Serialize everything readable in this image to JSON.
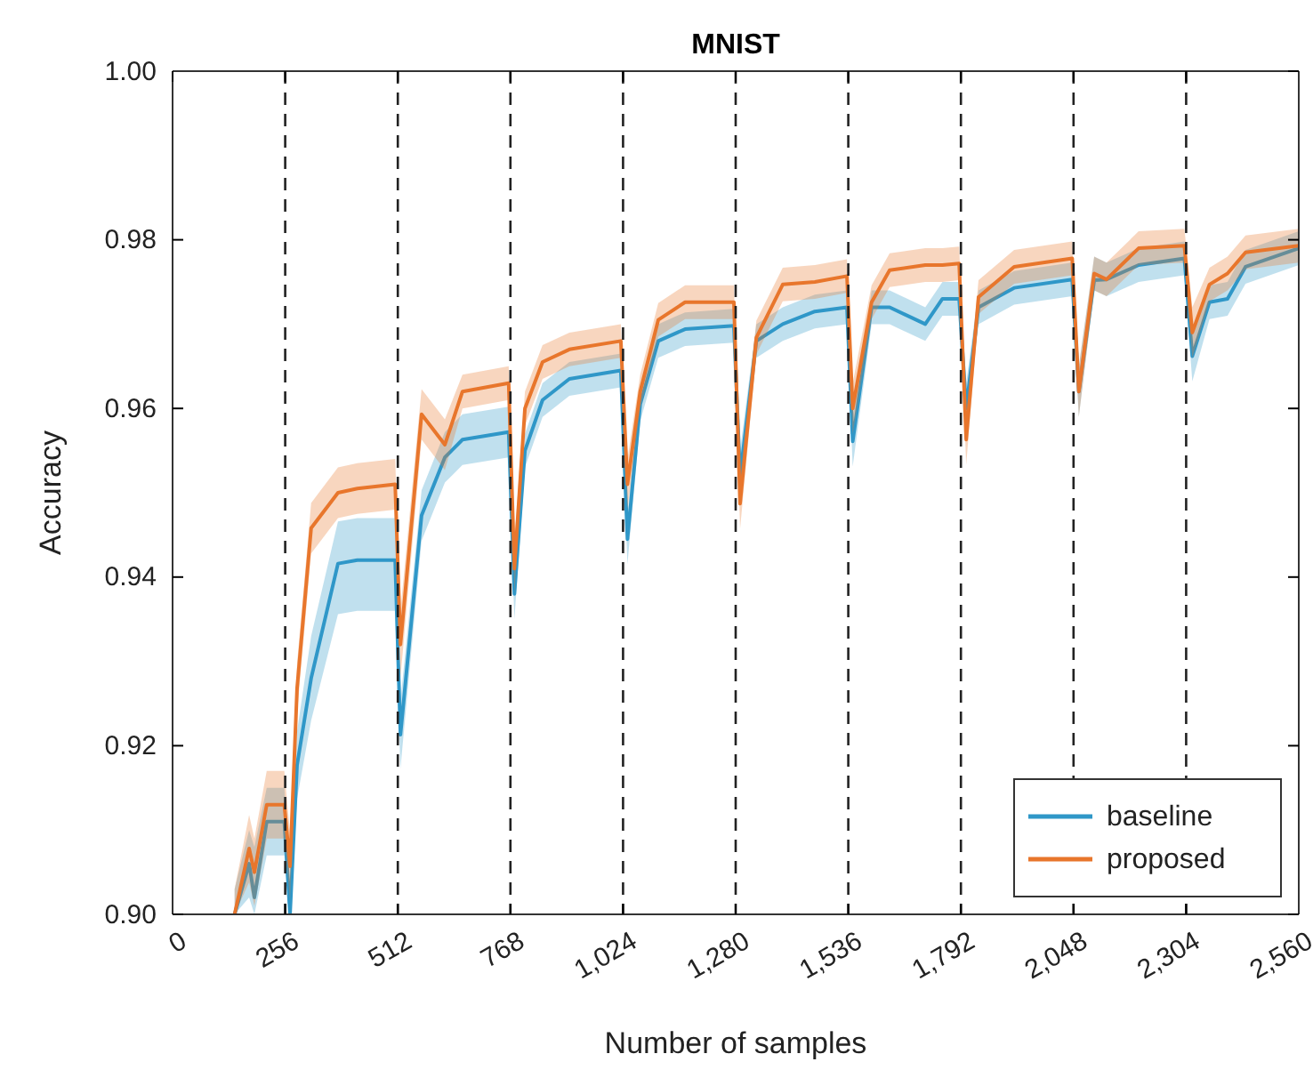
{
  "chart_data": {
    "type": "line",
    "title": "MNIST",
    "xlabel": "Number of samples",
    "ylabel": "Accuracy",
    "x": [
      141,
      174,
      186,
      214,
      254,
      267,
      283,
      315,
      376,
      420,
      506,
      518,
      566,
      619,
      659,
      764,
      777,
      801,
      841,
      902,
      1019,
      1034,
      1063,
      1104,
      1165,
      1276,
      1290,
      1327,
      1387,
      1460,
      1533,
      1546,
      1589,
      1630,
      1711,
      1750,
      1788,
      1804,
      1832,
      1913,
      2045,
      2060,
      2095,
      2123,
      2196,
      2300,
      2318,
      2357,
      2398,
      2439,
      2560
    ],
    "series": [
      {
        "name": "baseline",
        "color": "#2f97c8",
        "values": [
          0.9,
          0.906,
          0.902,
          0.911,
          0.911,
          0.9,
          0.9177,
          0.928,
          0.9416,
          0.942,
          0.942,
          0.9213,
          0.9473,
          0.9542,
          0.9563,
          0.9572,
          0.938,
          0.955,
          0.961,
          0.9635,
          0.9645,
          0.9445,
          0.9605,
          0.968,
          0.9694,
          0.9698,
          0.952,
          0.968,
          0.97,
          0.9715,
          0.972,
          0.9561,
          0.972,
          0.972,
          0.97,
          0.973,
          0.973,
          0.96,
          0.972,
          0.9743,
          0.9753,
          0.962,
          0.9752,
          0.9753,
          0.977,
          0.9778,
          0.9662,
          0.9726,
          0.973,
          0.9768,
          0.979
        ],
        "lower": [
          0.9,
          0.902,
          0.9,
          0.907,
          0.907,
          0.9,
          0.9137,
          0.923,
          0.9356,
          0.936,
          0.936,
          0.9173,
          0.9443,
          0.9512,
          0.9533,
          0.9542,
          0.935,
          0.953,
          0.959,
          0.9615,
          0.9625,
          0.9415,
          0.9585,
          0.966,
          0.9674,
          0.9678,
          0.949,
          0.966,
          0.968,
          0.9695,
          0.97,
          0.9531,
          0.97,
          0.97,
          0.968,
          0.971,
          0.971,
          0.957,
          0.97,
          0.9723,
          0.9733,
          0.959,
          0.974,
          0.9733,
          0.975,
          0.9758,
          0.9632,
          0.9706,
          0.971,
          0.9748,
          0.977
        ],
        "upper": [
          0.903,
          0.91,
          0.908,
          0.915,
          0.915,
          0.904,
          0.9217,
          0.933,
          0.9466,
          0.947,
          0.947,
          0.9253,
          0.9503,
          0.9572,
          0.9593,
          0.9602,
          0.941,
          0.957,
          0.963,
          0.9655,
          0.9665,
          0.9475,
          0.9625,
          0.97,
          0.9714,
          0.9718,
          0.955,
          0.97,
          0.972,
          0.9735,
          0.974,
          0.9591,
          0.974,
          0.974,
          0.972,
          0.975,
          0.975,
          0.963,
          0.974,
          0.9763,
          0.9773,
          0.965,
          0.978,
          0.9773,
          0.979,
          0.9798,
          0.9692,
          0.9746,
          0.975,
          0.9788,
          0.981
        ]
      },
      {
        "name": "proposed",
        "color": "#e8762c",
        "values": [
          0.9,
          0.9078,
          0.905,
          0.913,
          0.913,
          0.9057,
          0.9268,
          0.9458,
          0.95,
          0.9505,
          0.951,
          0.932,
          0.9593,
          0.9557,
          0.962,
          0.963,
          0.941,
          0.96,
          0.9655,
          0.967,
          0.968,
          0.951,
          0.962,
          0.9705,
          0.9726,
          0.9726,
          0.9487,
          0.9684,
          0.9747,
          0.975,
          0.9757,
          0.96,
          0.9726,
          0.9764,
          0.977,
          0.977,
          0.9772,
          0.9563,
          0.9732,
          0.9768,
          0.9778,
          0.962,
          0.976,
          0.9753,
          0.979,
          0.9793,
          0.969,
          0.9747,
          0.976,
          0.9785,
          0.9793
        ],
        "lower": [
          0.9,
          0.9038,
          0.901,
          0.909,
          0.909,
          0.9017,
          0.9238,
          0.9428,
          0.947,
          0.9475,
          0.948,
          0.928,
          0.9563,
          0.9527,
          0.96,
          0.961,
          0.938,
          0.958,
          0.9635,
          0.965,
          0.966,
          0.948,
          0.96,
          0.9685,
          0.9706,
          0.9706,
          0.9457,
          0.9664,
          0.9727,
          0.973,
          0.9737,
          0.957,
          0.9706,
          0.9744,
          0.975,
          0.975,
          0.9752,
          0.9533,
          0.9712,
          0.9748,
          0.9758,
          0.959,
          0.974,
          0.9733,
          0.977,
          0.9773,
          0.966,
          0.9727,
          0.974,
          0.9765,
          0.9773
        ],
        "upper": [
          0.903,
          0.9118,
          0.909,
          0.917,
          0.917,
          0.9097,
          0.9298,
          0.9488,
          0.953,
          0.9535,
          0.954,
          0.936,
          0.9623,
          0.9587,
          0.964,
          0.965,
          0.944,
          0.962,
          0.9675,
          0.969,
          0.97,
          0.954,
          0.964,
          0.9725,
          0.9746,
          0.9746,
          0.9517,
          0.9704,
          0.9767,
          0.977,
          0.9777,
          0.963,
          0.9746,
          0.9784,
          0.979,
          0.979,
          0.9792,
          0.9593,
          0.9752,
          0.9788,
          0.9798,
          0.965,
          0.978,
          0.9773,
          0.981,
          0.9813,
          0.972,
          0.9767,
          0.978,
          0.9805,
          0.9813
        ]
      }
    ],
    "xlim": [
      0,
      2560
    ],
    "xticks": [
      0,
      256,
      512,
      768,
      {
        "value": 1024,
        "label": "1,024"
      },
      {
        "value": 1280,
        "label": "1,280"
      },
      {
        "value": 1536,
        "label": "1,536"
      },
      {
        "value": 1792,
        "label": "1,792"
      },
      {
        "value": 2048,
        "label": "2,048"
      },
      {
        "value": 2304,
        "label": "2,304"
      },
      {
        "value": 2560,
        "label": "2,560"
      }
    ],
    "ylim": [
      0.9,
      1.0
    ],
    "yticks": [
      {
        "value": 0.9,
        "label": "0.90"
      },
      {
        "value": 0.92,
        "label": "0.92"
      },
      {
        "value": 0.94,
        "label": "0.94"
      },
      {
        "value": 0.96,
        "label": "0.96"
      },
      {
        "value": 0.98,
        "label": "0.98"
      },
      {
        "value": 1.0,
        "label": "1.00"
      }
    ],
    "ref_lines": [
      {
        "axis": "x",
        "value": 256,
        "color": "#222222",
        "line_style": "dashed"
      },
      {
        "axis": "x",
        "value": 512,
        "color": "#222222",
        "line_style": "dashed"
      },
      {
        "axis": "x",
        "value": 768,
        "color": "#222222",
        "line_style": "dashed"
      },
      {
        "axis": "x",
        "value": 1024,
        "color": "#222222",
        "line_style": "dashed"
      },
      {
        "axis": "x",
        "value": 1280,
        "color": "#222222",
        "line_style": "dashed"
      },
      {
        "axis": "x",
        "value": 1536,
        "color": "#222222",
        "line_style": "dashed"
      },
      {
        "axis": "x",
        "value": 1792,
        "color": "#222222",
        "line_style": "dashed"
      },
      {
        "axis": "x",
        "value": 2048,
        "color": "#222222",
        "line_style": "dashed"
      },
      {
        "axis": "x",
        "value": 2304,
        "color": "#222222",
        "line_style": "dashed"
      }
    ],
    "legend": "bottom right",
    "grid": false,
    "line_style": "solid",
    "marker": "none"
  }
}
